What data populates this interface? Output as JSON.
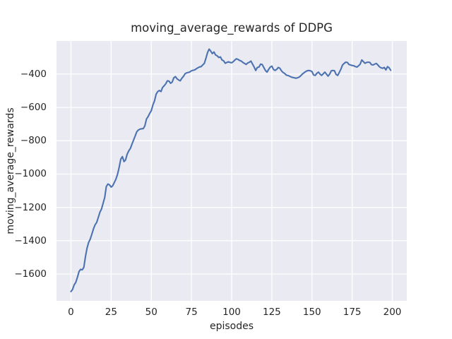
{
  "figure": {
    "kind": "matplotlib-seaborn-figure",
    "background": "#ffffff"
  },
  "chart_data": {
    "type": "line",
    "title": "moving_average_rewards of DDPG",
    "xlabel": "episodes",
    "ylabel": "moving_average_rewards",
    "legend_position": "none",
    "grid": true,
    "x_ticks": [
      0,
      25,
      50,
      75,
      100,
      125,
      150,
      175,
      200
    ],
    "y_ticks": [
      -400,
      -600,
      -800,
      -1000,
      -1200,
      -1400,
      -1600
    ],
    "xlim": [
      -9,
      209
    ],
    "ylim": [
      -1761,
      -201
    ],
    "style": {
      "plot_background": "#eaeaf2",
      "grid_color": "#ffffff",
      "line_color": "#4c72b0",
      "text_color": "#262626",
      "line_width": 2.1,
      "grid_width": 1.3
    },
    "series": [
      {
        "name": "moving_average_rewards",
        "x_start": 0,
        "x_step": 1,
        "values": [
          -1705,
          -1692,
          -1665,
          -1650,
          -1620,
          -1585,
          -1572,
          -1575,
          -1560,
          -1495,
          -1445,
          -1410,
          -1390,
          -1360,
          -1330,
          -1305,
          -1290,
          -1260,
          -1230,
          -1210,
          -1175,
          -1140,
          -1075,
          -1060,
          -1065,
          -1078,
          -1070,
          -1050,
          -1030,
          -1000,
          -960,
          -910,
          -895,
          -925,
          -915,
          -880,
          -860,
          -845,
          -820,
          -795,
          -770,
          -745,
          -735,
          -730,
          -728,
          -727,
          -710,
          -670,
          -655,
          -635,
          -620,
          -585,
          -560,
          -520,
          -505,
          -498,
          -505,
          -480,
          -470,
          -458,
          -440,
          -442,
          -455,
          -448,
          -422,
          -415,
          -428,
          -435,
          -440,
          -425,
          -414,
          -398,
          -392,
          -390,
          -387,
          -380,
          -377,
          -375,
          -368,
          -362,
          -357,
          -355,
          -345,
          -336,
          -305,
          -270,
          -250,
          -262,
          -277,
          -267,
          -285,
          -290,
          -300,
          -297,
          -315,
          -320,
          -335,
          -330,
          -326,
          -330,
          -332,
          -325,
          -315,
          -308,
          -312,
          -318,
          -322,
          -330,
          -336,
          -342,
          -333,
          -329,
          -322,
          -340,
          -358,
          -378,
          -360,
          -358,
          -340,
          -342,
          -360,
          -378,
          -388,
          -372,
          -358,
          -352,
          -372,
          -378,
          -372,
          -360,
          -365,
          -380,
          -390,
          -396,
          -406,
          -408,
          -412,
          -417,
          -420,
          -422,
          -425,
          -422,
          -418,
          -410,
          -400,
          -392,
          -385,
          -380,
          -378,
          -380,
          -385,
          -405,
          -408,
          -395,
          -388,
          -400,
          -408,
          -398,
          -388,
          -400,
          -412,
          -400,
          -380,
          -378,
          -380,
          -402,
          -408,
          -390,
          -370,
          -345,
          -336,
          -328,
          -330,
          -342,
          -345,
          -348,
          -350,
          -355,
          -358,
          -350,
          -340,
          -315,
          -325,
          -335,
          -330,
          -328,
          -330,
          -343,
          -345,
          -340,
          -336,
          -345,
          -356,
          -362,
          -365,
          -360,
          -375,
          -355,
          -362,
          -377
        ]
      }
    ]
  }
}
